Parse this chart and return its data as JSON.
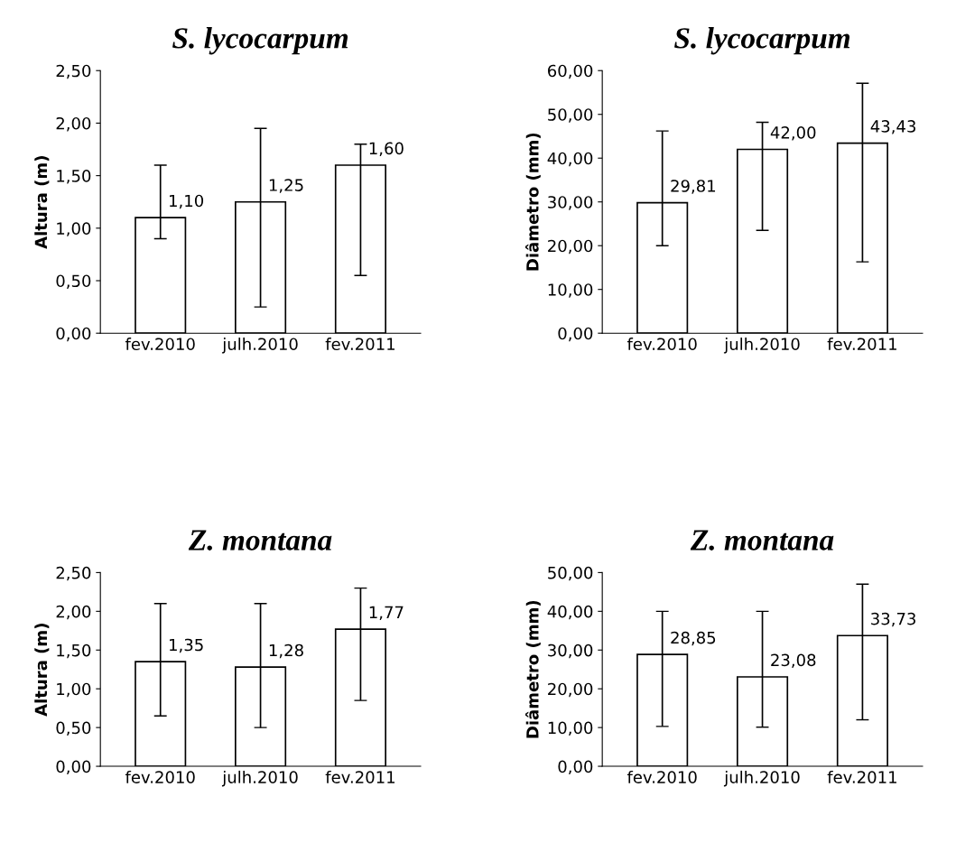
{
  "chart_data": [
    {
      "type": "bar",
      "title": "S. lycocarpum",
      "ylabel": "Altura (m)",
      "categories": [
        "fev.2010",
        "julh.2010",
        "fev.2011"
      ],
      "values": [
        1.1,
        1.25,
        1.6
      ],
      "errors": [
        [
          0.9,
          1.6
        ],
        [
          0.25,
          1.95
        ],
        [
          0.55,
          1.8
        ]
      ],
      "value_labels": [
        "1,10",
        "1,25",
        "1,60"
      ],
      "color": "#ffffff",
      "ylim": [
        0,
        2.5
      ],
      "yticks": [
        {
          "value": 0,
          "label": "0,00"
        },
        {
          "value": 0.5,
          "label": "0,50"
        },
        {
          "value": 1,
          "label": "1,00"
        },
        {
          "value": 1.5,
          "label": "1,50"
        },
        {
          "value": 2,
          "label": "2,00"
        },
        {
          "value": 2.5,
          "label": "2,50"
        }
      ],
      "grid": false,
      "legend": false
    },
    {
      "type": "bar",
      "title": "S. lycocarpum",
      "ylabel": "Diâmetro (mm)",
      "categories": [
        "fev.2010",
        "julh.2010",
        "fev.2011"
      ],
      "values": [
        29.81,
        42.0,
        43.43
      ],
      "errors": [
        [
          20.0,
          46.2
        ],
        [
          23.5,
          48.2
        ],
        [
          16.3,
          57.1
        ]
      ],
      "value_labels": [
        "29,81",
        "42,00",
        "43,43"
      ],
      "color": "#ffffff",
      "ylim": [
        0,
        60
      ],
      "yticks": [
        {
          "value": 0,
          "label": "0,00"
        },
        {
          "value": 10,
          "label": "10,00"
        },
        {
          "value": 20,
          "label": "20,00"
        },
        {
          "value": 30,
          "label": "30,00"
        },
        {
          "value": 40,
          "label": "40,00"
        },
        {
          "value": 50,
          "label": "50,00"
        },
        {
          "value": 60,
          "label": "60,00"
        }
      ],
      "grid": false,
      "legend": false
    },
    {
      "type": "bar",
      "title": "Z. montana",
      "ylabel": "Altura (m)",
      "categories": [
        "fev.2010",
        "julh.2010",
        "fev.2011"
      ],
      "values": [
        1.35,
        1.28,
        1.77
      ],
      "errors": [
        [
          0.65,
          2.1
        ],
        [
          0.5,
          2.1
        ],
        [
          0.85,
          2.3
        ]
      ],
      "value_labels": [
        "1,35",
        "1,28",
        "1,77"
      ],
      "color": "#ffffff",
      "ylim": [
        0,
        2.5
      ],
      "yticks": [
        {
          "value": 0,
          "label": "0,00"
        },
        {
          "value": 0.5,
          "label": "0,50"
        },
        {
          "value": 1,
          "label": "1,00"
        },
        {
          "value": 1.5,
          "label": "1,50"
        },
        {
          "value": 2,
          "label": "2,00"
        },
        {
          "value": 2.5,
          "label": "2,50"
        }
      ],
      "grid": false,
      "legend": false
    },
    {
      "type": "bar",
      "title": "Z. montana",
      "ylabel": "Diâmetro (mm)",
      "categories": [
        "fev.2010",
        "julh.2010",
        "fev.2011"
      ],
      "values": [
        28.85,
        23.08,
        33.73
      ],
      "errors": [
        [
          10.3,
          40.0
        ],
        [
          10.1,
          40.0
        ],
        [
          12.0,
          47.0
        ]
      ],
      "value_labels": [
        "28,85",
        "23,08",
        "33,73"
      ],
      "color": "#ffffff",
      "ylim": [
        0,
        50
      ],
      "yticks": [
        {
          "value": 0,
          "label": "0,00"
        },
        {
          "value": 10,
          "label": "10,00"
        },
        {
          "value": 20,
          "label": "20,00"
        },
        {
          "value": 30,
          "label": "30,00"
        },
        {
          "value": 40,
          "label": "40,00"
        },
        {
          "value": 50,
          "label": "50,00"
        }
      ],
      "grid": false,
      "legend": false
    }
  ]
}
